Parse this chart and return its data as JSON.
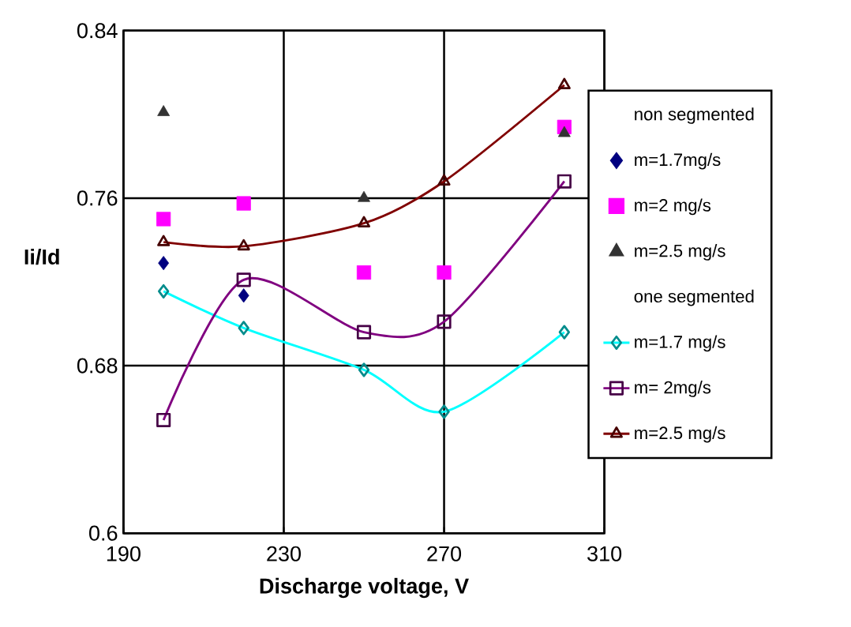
{
  "chart_data": {
    "type": "scatter",
    "xlabel": "Discharge voltage, V",
    "ylabel": "Ii/Id",
    "xlim": [
      190,
      310
    ],
    "xticks": [
      190,
      230,
      270,
      310
    ],
    "ylim": [
      0.6,
      0.84
    ],
    "yticks": [
      0.6,
      0.68,
      0.76,
      0.84
    ],
    "grid": true,
    "legend": "right",
    "annotations": [
      "non segmented",
      "one segmented"
    ],
    "series": [
      {
        "name": "m=1.7mg/s",
        "marker": "diamond",
        "color": "#000080",
        "x": [
          200,
          220
        ],
        "values": [
          0.729,
          0.7135
        ]
      },
      {
        "name": "m=2 mg/s",
        "marker": "square",
        "color": "#ff00ff",
        "x": [
          200,
          220,
          250,
          270,
          300
        ],
        "values": [
          0.75,
          0.7575,
          0.7245,
          0.7245,
          0.794
        ]
      },
      {
        "name": "m=2.5 mg/s",
        "marker": "triangle",
        "color": "#333333",
        "x": [
          200,
          250,
          300
        ],
        "values": [
          0.801,
          0.76,
          0.791
        ]
      },
      {
        "name": "m=1.7 mg/s",
        "type": "line",
        "marker": "diamond",
        "color": "#00ffff",
        "x": [
          200,
          220,
          250,
          270,
          300
        ],
        "values": [
          0.7155,
          0.698,
          0.678,
          0.658,
          0.696
        ]
      },
      {
        "name": "m= 2mg/s",
        "type": "line",
        "marker": "square",
        "color": "#800080",
        "x": [
          200,
          220,
          250,
          270,
          300
        ],
        "values": [
          0.654,
          0.721,
          0.696,
          0.701,
          0.768
        ]
      },
      {
        "name": "m=2.5 mg/s",
        "type": "line",
        "marker": "triangle",
        "color": "#800000",
        "x": [
          200,
          220,
          250,
          270,
          300
        ],
        "values": [
          0.739,
          0.737,
          0.748,
          0.768,
          0.814
        ]
      }
    ]
  }
}
